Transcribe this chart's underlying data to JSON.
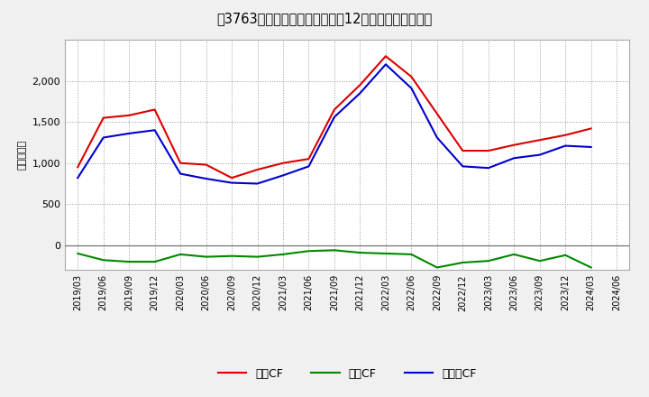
{
  "title": "[3763]  キャッシュフローの12か月移動合計の推移",
  "ylabel": "（百万円）",
  "x_labels": [
    "2019/03",
    "2019/06",
    "2019/09",
    "2019/12",
    "2020/03",
    "2020/06",
    "2020/09",
    "2020/12",
    "2021/03",
    "2021/06",
    "2021/09",
    "2021/12",
    "2022/03",
    "2022/06",
    "2022/09",
    "2022/12",
    "2023/03",
    "2023/06",
    "2023/09",
    "2023/12",
    "2024/03",
    "2024/06"
  ],
  "operating_cf": [
    950,
    1550,
    1580,
    1650,
    1000,
    980,
    820,
    920,
    1000,
    1050,
    1650,
    1950,
    2300,
    2050,
    1600,
    1150,
    1150,
    1220,
    1280,
    1340,
    1420,
    null
  ],
  "investing_cf": [
    -100,
    -180,
    -200,
    -200,
    -110,
    -140,
    -130,
    -140,
    -110,
    -70,
    -60,
    -90,
    -100,
    -110,
    -270,
    -210,
    -190,
    -110,
    -190,
    -120,
    -270,
    null
  ],
  "free_cf": [
    820,
    1310,
    1360,
    1400,
    870,
    810,
    760,
    750,
    850,
    960,
    1560,
    1850,
    2200,
    1910,
    1310,
    960,
    940,
    1060,
    1100,
    1210,
    1195,
    null
  ],
  "operating_color": "#dd0000",
  "investing_color": "#008800",
  "free_color": "#0000cc",
  "bg_color": "#f0f0f0",
  "plot_bg_color": "#ffffff",
  "ylim": [
    -300,
    2500
  ],
  "yticks": [
    0,
    500,
    1000,
    1500,
    2000
  ],
  "legend_labels": [
    "営業CF",
    "投資CF",
    "フリーCF"
  ]
}
